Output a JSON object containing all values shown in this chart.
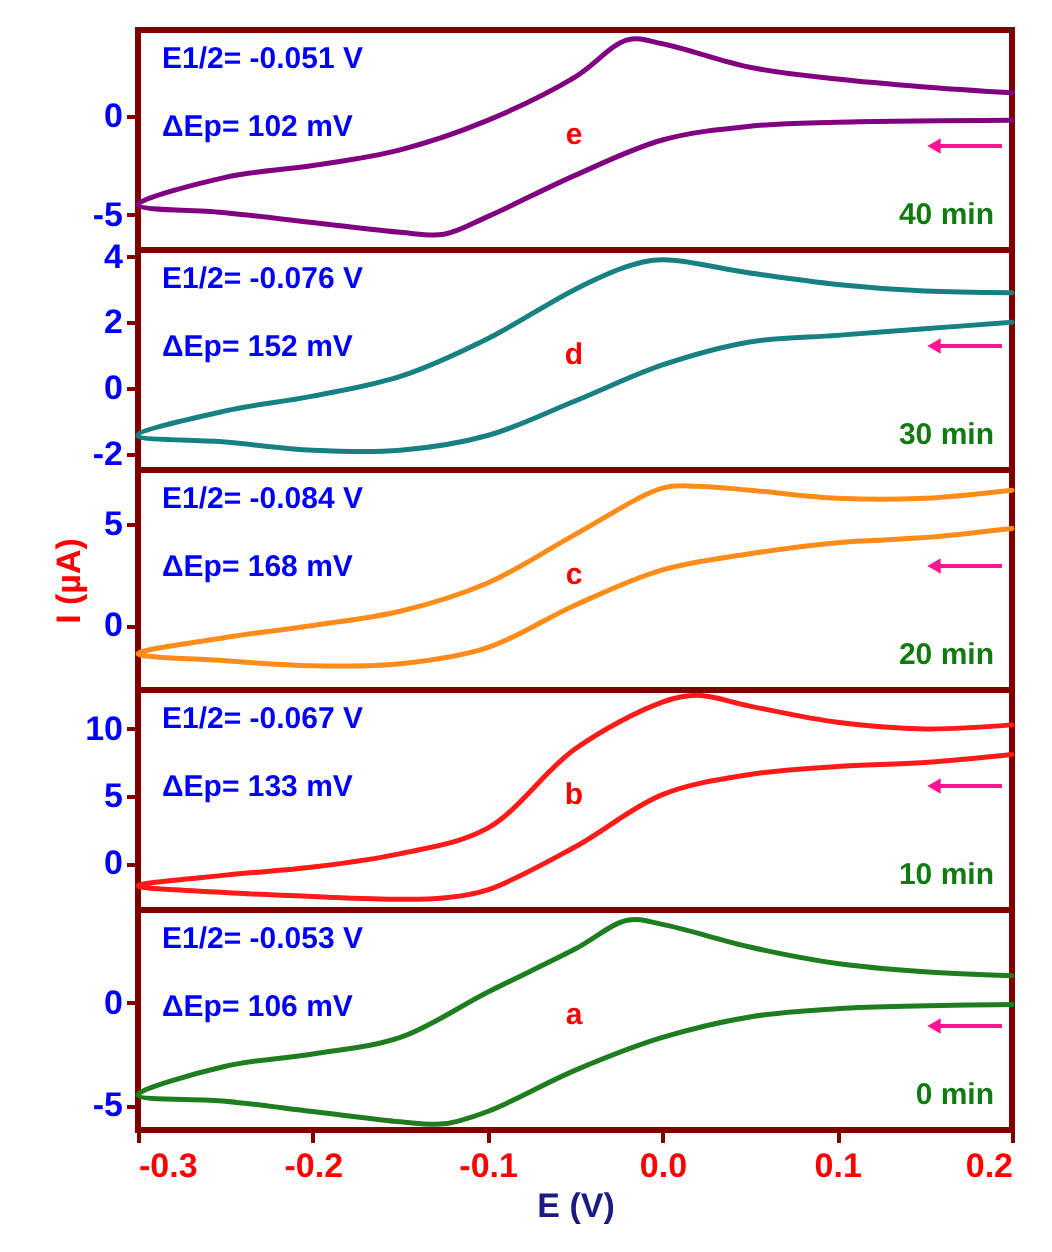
{
  "chart_data": [
    {
      "type": "line",
      "xlim": [
        -0.3,
        0.2
      ],
      "xticks": [
        -0.3,
        -0.2,
        -0.1,
        0.0,
        0.1,
        0.2
      ],
      "ylim": [
        -6.8,
        4.4
      ],
      "yticks": [
        -5,
        0
      ],
      "line_style": "solid",
      "tick_labels": "y",
      "annotations": [
        "E1/2= -0.051 V",
        "ΔEp= 102 mV",
        "e",
        "40 min"
      ],
      "series": [
        {
          "color": "#800080",
          "x": [
            0.2,
            0.1,
            0.05,
            0.0,
            -0.05,
            -0.1,
            -0.125,
            -0.15,
            -0.2,
            -0.25,
            -0.3,
            -0.25,
            -0.2,
            -0.15,
            -0.1,
            -0.05,
            -0.02,
            0.0,
            0.05,
            0.1,
            0.15,
            0.2
          ],
          "values": [
            -0.2,
            -0.3,
            -0.5,
            -1.2,
            -3.0,
            -5.1,
            -6.0,
            -5.9,
            -5.4,
            -4.9,
            -4.5,
            -3.1,
            -2.5,
            -1.7,
            -0.2,
            2.0,
            3.9,
            3.7,
            2.5,
            1.9,
            1.5,
            1.2
          ]
        }
      ]
    },
    {
      "type": "line",
      "xlim": [
        -0.3,
        0.2
      ],
      "xticks": [
        -0.3,
        -0.2,
        -0.1,
        0.0,
        0.1,
        0.2
      ],
      "ylim": [
        -2.5,
        4.2
      ],
      "yticks": [
        -2,
        0,
        2,
        4
      ],
      "line_style": "solid",
      "tick_labels": "y",
      "annotations": [
        "E1/2= -0.076 V",
        "ΔEp= 152 mV",
        "d",
        "30 min"
      ],
      "series": [
        {
          "color": "#178080",
          "x": [
            0.2,
            0.15,
            0.1,
            0.05,
            0.0,
            -0.05,
            -0.1,
            -0.15,
            -0.2,
            -0.25,
            -0.3,
            -0.25,
            -0.2,
            -0.15,
            -0.1,
            -0.05,
            -0.02,
            0.0,
            0.05,
            0.1,
            0.15,
            0.2
          ],
          "values": [
            2.0,
            1.8,
            1.6,
            1.4,
            0.7,
            -0.4,
            -1.45,
            -1.9,
            -1.9,
            -1.65,
            -1.45,
            -0.7,
            -0.25,
            0.35,
            1.5,
            3.0,
            3.7,
            3.9,
            3.5,
            3.15,
            2.95,
            2.9
          ]
        }
      ]
    },
    {
      "type": "line",
      "xlim": [
        -0.3,
        0.2
      ],
      "xticks": [
        -0.3,
        -0.2,
        -0.1,
        0.0,
        0.1,
        0.2
      ],
      "ylim": [
        -3.2,
        7.7
      ],
      "yticks": [
        0,
        5
      ],
      "line_style": "solid",
      "tick_labels": "y",
      "ylabel": "I (µA)",
      "annotations": [
        "E1/2= -0.084 V",
        "ΔEp= 168 mV",
        "c",
        "20 min"
      ],
      "series": [
        {
          "color": "#ff8c1a",
          "x": [
            0.2,
            0.15,
            0.1,
            0.05,
            0.0,
            -0.05,
            -0.1,
            -0.15,
            -0.2,
            -0.25,
            -0.3,
            -0.25,
            -0.2,
            -0.15,
            -0.1,
            -0.05,
            0.0,
            0.02,
            0.05,
            0.1,
            0.15,
            0.2
          ],
          "values": [
            4.8,
            4.35,
            4.1,
            3.55,
            2.75,
            1.0,
            -1.1,
            -1.9,
            -2.0,
            -1.75,
            -1.4,
            -0.6,
            0.0,
            0.7,
            2.1,
            4.5,
            6.8,
            6.9,
            6.7,
            6.3,
            6.3,
            6.7
          ]
        }
      ]
    },
    {
      "type": "line",
      "xlim": [
        -0.3,
        0.2
      ],
      "xticks": [
        -0.3,
        -0.2,
        -0.1,
        0.0,
        0.1,
        0.2
      ],
      "ylim": [
        -3.5,
        12.9
      ],
      "yticks": [
        0,
        5,
        10
      ],
      "line_style": "solid",
      "tick_labels": "y",
      "annotations": [
        "E1/2= -0.067 V",
        "ΔEp= 133 mV",
        "b",
        "10 min"
      ],
      "series": [
        {
          "color": "#ff1a1a",
          "x": [
            0.2,
            0.15,
            0.1,
            0.05,
            0.0,
            -0.05,
            -0.1,
            -0.125,
            -0.15,
            -0.2,
            -0.25,
            -0.3,
            -0.25,
            -0.2,
            -0.15,
            -0.1,
            -0.05,
            0.0,
            0.02,
            0.05,
            0.1,
            0.15,
            0.2
          ],
          "values": [
            8.1,
            7.5,
            7.2,
            6.6,
            5.1,
            1.2,
            -2.0,
            -2.6,
            -2.7,
            -2.5,
            -2.2,
            -1.7,
            -0.9,
            -0.3,
            0.7,
            2.6,
            8.5,
            12.0,
            12.5,
            11.7,
            10.5,
            10.0,
            10.3
          ]
        }
      ]
    },
    {
      "type": "line",
      "xlim": [
        -0.3,
        0.2
      ],
      "ylim": [
        -6.2,
        4.5
      ],
      "yticks": [
        -5,
        0
      ],
      "line_style": "solid",
      "xlabel": "E (V)",
      "xticks": [
        -0.3,
        -0.2,
        -0.1,
        {
          "value": 0.0,
          "label": "0.0"
        },
        0.1,
        0.2
      ],
      "annotations": [
        "E1/2= -0.053 V",
        "ΔEp= 106 mV",
        "a",
        "0 min"
      ],
      "series": [
        {
          "color": "#1e7d1e",
          "x": [
            0.2,
            0.1,
            0.05,
            0.0,
            -0.05,
            -0.1,
            -0.125,
            -0.15,
            -0.2,
            -0.25,
            -0.3,
            -0.25,
            -0.2,
            -0.15,
            -0.1,
            -0.05,
            -0.02,
            0.0,
            0.05,
            0.1,
            0.15,
            0.2
          ],
          "values": [
            -0.1,
            -0.3,
            -0.7,
            -1.7,
            -3.3,
            -5.3,
            -5.9,
            -5.8,
            -5.3,
            -4.8,
            -4.5,
            -3.1,
            -2.5,
            -1.7,
            0.5,
            2.6,
            4.0,
            3.8,
            2.7,
            1.9,
            1.5,
            1.3
          ]
        }
      ]
    }
  ]
}
